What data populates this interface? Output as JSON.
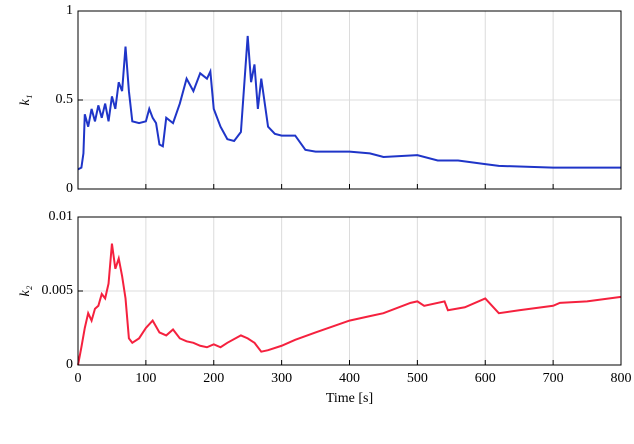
{
  "chart_data": [
    {
      "type": "line",
      "ylabel": "k₁",
      "color": "#1f35c8",
      "grid": true,
      "xtick_labels": false,
      "xlim": [
        0,
        800
      ],
      "xticks": [
        0,
        100,
        200,
        300,
        400,
        500,
        600,
        700,
        800
      ],
      "ylim": [
        0,
        1
      ],
      "yticks": [
        0,
        0.5,
        1
      ],
      "x": [
        0,
        5,
        8,
        10,
        15,
        20,
        25,
        30,
        35,
        40,
        45,
        50,
        55,
        60,
        65,
        70,
        75,
        80,
        90,
        100,
        105,
        110,
        115,
        120,
        125,
        130,
        140,
        150,
        160,
        170,
        180,
        190,
        195,
        200,
        210,
        220,
        230,
        240,
        250,
        255,
        260,
        265,
        270,
        280,
        290,
        300,
        320,
        335,
        350,
        400,
        430,
        450,
        500,
        530,
        560,
        600,
        620,
        700,
        750,
        800
      ],
      "values": [
        0.11,
        0.12,
        0.2,
        0.42,
        0.35,
        0.45,
        0.38,
        0.47,
        0.4,
        0.48,
        0.38,
        0.52,
        0.45,
        0.6,
        0.55,
        0.8,
        0.55,
        0.38,
        0.37,
        0.38,
        0.45,
        0.4,
        0.37,
        0.25,
        0.24,
        0.4,
        0.37,
        0.48,
        0.62,
        0.55,
        0.65,
        0.62,
        0.66,
        0.45,
        0.35,
        0.28,
        0.27,
        0.32,
        0.86,
        0.6,
        0.7,
        0.45,
        0.62,
        0.35,
        0.31,
        0.3,
        0.3,
        0.22,
        0.21,
        0.21,
        0.2,
        0.18,
        0.19,
        0.16,
        0.16,
        0.14,
        0.13,
        0.12,
        0.12,
        0.12
      ]
    },
    {
      "type": "line",
      "ylabel": "k₂",
      "xlabel": "Time [s]",
      "color": "#f5213e",
      "grid": true,
      "xtick_labels": true,
      "xlim": [
        0,
        800
      ],
      "xticks": [
        0,
        100,
        200,
        300,
        400,
        500,
        600,
        700,
        800
      ],
      "ylim": [
        0,
        0.01
      ],
      "yticks": [
        0,
        0.005,
        0.01
      ],
      "x": [
        0,
        5,
        10,
        15,
        20,
        25,
        30,
        35,
        40,
        45,
        50,
        55,
        60,
        65,
        70,
        75,
        80,
        90,
        100,
        110,
        120,
        130,
        140,
        150,
        160,
        170,
        180,
        190,
        200,
        210,
        220,
        240,
        250,
        260,
        270,
        280,
        300,
        320,
        350,
        400,
        430,
        450,
        490,
        500,
        510,
        540,
        545,
        570,
        600,
        620,
        650,
        700,
        710,
        750,
        800
      ],
      "values": [
        0,
        0.0012,
        0.0025,
        0.0035,
        0.003,
        0.0038,
        0.004,
        0.0048,
        0.0045,
        0.0055,
        0.0082,
        0.0065,
        0.0072,
        0.006,
        0.0045,
        0.0018,
        0.0015,
        0.0018,
        0.0025,
        0.003,
        0.0022,
        0.002,
        0.0024,
        0.0018,
        0.0016,
        0.0015,
        0.0013,
        0.0012,
        0.0014,
        0.0012,
        0.0015,
        0.002,
        0.0018,
        0.0015,
        0.0009,
        0.001,
        0.0013,
        0.0017,
        0.0022,
        0.003,
        0.0033,
        0.0035,
        0.0042,
        0.0043,
        0.004,
        0.0043,
        0.0037,
        0.0039,
        0.0045,
        0.0035,
        0.0037,
        0.004,
        0.0042,
        0.0043,
        0.0046
      ]
    }
  ]
}
